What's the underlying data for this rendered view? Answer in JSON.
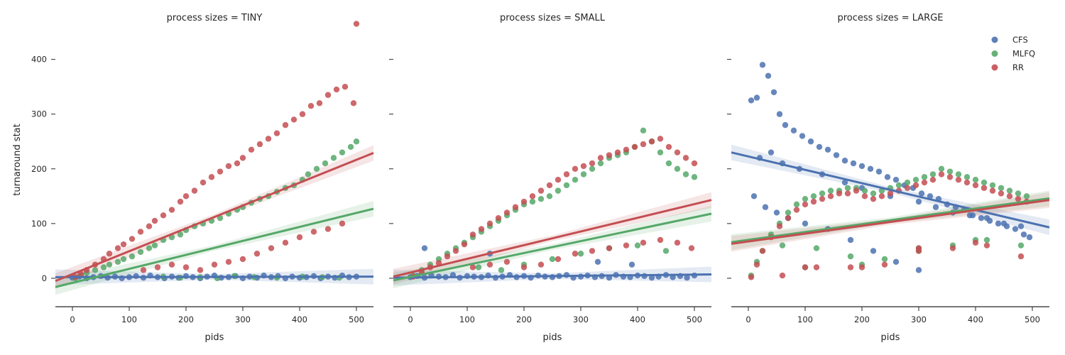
{
  "chart_data": {
    "type": "scatter",
    "y_axis_label": "turnaround stat",
    "x_axis_label": "pids",
    "x_ticks": [
      0,
      100,
      200,
      300,
      400,
      500
    ],
    "y_ticks": [
      0,
      100,
      200,
      300,
      400
    ],
    "xlim": [
      -30,
      530
    ],
    "ylim": [
      -52,
      480
    ],
    "grid": false,
    "legend_position": "top-right",
    "legend": [
      {
        "name": "CFS",
        "color": "#4c72b0"
      },
      {
        "name": "MLFQ",
        "color": "#55a868"
      },
      {
        "name": "RR",
        "color": "#c44e52"
      }
    ],
    "panels": [
      {
        "title": "process sizes = TINY",
        "fits": {
          "CFS": [
            [
              -30,
              2
            ],
            [
              530,
              3
            ]
          ],
          "MLFQ": [
            [
              -30,
              -16
            ],
            [
              530,
              127
            ]
          ],
          "RR": [
            [
              -30,
              -5
            ],
            [
              530,
              229
            ]
          ]
        },
        "series": [
          {
            "name": "CFS",
            "x": [
              0,
              12,
              25,
              37,
              50,
              62,
              75,
              87,
              100,
              112,
              125,
              137,
              150,
              162,
              175,
              187,
              200,
              212,
              225,
              237,
              250,
              262,
              275,
              287,
              300,
              312,
              325,
              337,
              350,
              362,
              375,
              387,
              400,
              412,
              425,
              437,
              450,
              462,
              475,
              487,
              500
            ],
            "y": [
              1,
              3,
              0,
              2,
              4,
              1,
              3,
              0,
              2,
              4,
              1,
              5,
              2,
              0,
              3,
              1,
              4,
              2,
              0,
              3,
              5,
              1,
              2,
              4,
              0,
              3,
              1,
              5,
              2,
              4,
              0,
              3,
              1,
              2,
              4,
              0,
              3,
              1,
              5,
              2,
              3
            ]
          },
          {
            "name": "MLFQ",
            "x": [
              5,
              15,
              25,
              40,
              55,
              65,
              80,
              90,
              105,
              120,
              135,
              145,
              160,
              175,
              190,
              200,
              215,
              230,
              245,
              260,
              275,
              290,
              300,
              315,
              330,
              345,
              360,
              375,
              390,
              405,
              415,
              430,
              445,
              460,
              475,
              490,
              500,
              160,
              190,
              225,
              255,
              285,
              320,
              360,
              405,
              440,
              470
            ],
            "y": [
              0,
              5,
              10,
              15,
              20,
              25,
              30,
              35,
              40,
              48,
              55,
              60,
              70,
              75,
              80,
              88,
              95,
              100,
              105,
              110,
              118,
              125,
              130,
              138,
              145,
              150,
              158,
              165,
              170,
              180,
              190,
              200,
              210,
              220,
              230,
              240,
              250,
              3,
              1,
              2,
              0,
              4,
              2,
              1,
              3,
              2,
              1
            ]
          },
          {
            "name": "RR",
            "x": [
              5,
              15,
              25,
              40,
              55,
              65,
              80,
              90,
              105,
              120,
              135,
              145,
              160,
              175,
              190,
              200,
              215,
              230,
              245,
              260,
              275,
              290,
              300,
              315,
              330,
              345,
              360,
              375,
              390,
              405,
              420,
              435,
              450,
              465,
              480,
              495,
              500,
              125,
              150,
              175,
              200,
              225,
              250,
              275,
              300,
              325,
              350,
              375,
              400,
              425,
              450,
              475
            ],
            "y": [
              2,
              8,
              15,
              25,
              35,
              45,
              55,
              62,
              72,
              85,
              95,
              105,
              115,
              125,
              140,
              150,
              160,
              175,
              185,
              195,
              205,
              210,
              220,
              235,
              245,
              255,
              265,
              280,
              290,
              300,
              315,
              320,
              335,
              345,
              350,
              320,
              465,
              15,
              20,
              25,
              20,
              15,
              25,
              30,
              35,
              45,
              55,
              65,
              75,
              85,
              90,
              100
            ]
          }
        ]
      },
      {
        "title": "process sizes = SMALL",
        "fits": {
          "CFS": [
            [
              -30,
              1
            ],
            [
              530,
              7
            ]
          ],
          "MLFQ": [
            [
              -30,
              -4
            ],
            [
              530,
              118
            ]
          ],
          "RR": [
            [
              -30,
              3
            ],
            [
              530,
              143
            ]
          ]
        },
        "series": [
          {
            "name": "CFS",
            "x": [
              0,
              12,
              25,
              37,
              50,
              62,
              75,
              87,
              100,
              112,
              125,
              137,
              150,
              162,
              175,
              187,
              200,
              212,
              225,
              237,
              250,
              262,
              275,
              287,
              300,
              312,
              325,
              337,
              350,
              362,
              375,
              387,
              400,
              412,
              425,
              437,
              450,
              462,
              475,
              487,
              500,
              25,
              140,
              330,
              390
            ],
            "y": [
              2,
              4,
              1,
              5,
              3,
              2,
              6,
              1,
              4,
              3,
              2,
              5,
              1,
              3,
              6,
              2,
              4,
              1,
              5,
              3,
              2,
              4,
              6,
              1,
              3,
              5,
              2,
              4,
              1,
              6,
              3,
              2,
              5,
              4,
              1,
              3,
              6,
              2,
              4,
              1,
              5,
              55,
              45,
              30,
              25
            ]
          },
          {
            "name": "MLFQ",
            "x": [
              5,
              20,
              35,
              50,
              65,
              80,
              95,
              110,
              125,
              140,
              155,
              170,
              185,
              200,
              215,
              230,
              245,
              260,
              275,
              290,
              305,
              320,
              335,
              350,
              365,
              380,
              395,
              410,
              425,
              440,
              455,
              470,
              485,
              500,
              120,
              160,
              200,
              250,
              300,
              350,
              400,
              450
            ],
            "y": [
              5,
              15,
              25,
              35,
              45,
              55,
              65,
              75,
              85,
              95,
              105,
              115,
              125,
              135,
              140,
              145,
              150,
              160,
              170,
              180,
              190,
              200,
              210,
              220,
              225,
              230,
              240,
              270,
              250,
              230,
              210,
              200,
              190,
              185,
              20,
              15,
              25,
              35,
              45,
              55,
              60,
              50
            ]
          },
          {
            "name": "RR",
            "x": [
              5,
              20,
              35,
              50,
              65,
              80,
              95,
              110,
              125,
              140,
              155,
              170,
              185,
              200,
              215,
              230,
              245,
              260,
              275,
              290,
              305,
              320,
              335,
              350,
              365,
              380,
              395,
              410,
              425,
              440,
              455,
              470,
              485,
              500,
              110,
              140,
              170,
              200,
              230,
              260,
              290,
              320,
              350,
              380,
              410,
              440,
              470,
              495
            ],
            "y": [
              3,
              10,
              20,
              28,
              40,
              50,
              62,
              80,
              90,
              100,
              110,
              120,
              130,
              140,
              150,
              160,
              170,
              180,
              190,
              200,
              205,
              210,
              220,
              225,
              230,
              235,
              240,
              245,
              250,
              255,
              240,
              230,
              220,
              210,
              20,
              25,
              30,
              20,
              25,
              35,
              45,
              50,
              55,
              60,
              65,
              70,
              65,
              55
            ]
          }
        ]
      },
      {
        "title": "process sizes = LARGE",
        "fits": {
          "CFS": [
            [
              -30,
              230
            ],
            [
              530,
              93
            ]
          ],
          "MLFQ": [
            [
              -30,
              66
            ],
            [
              530,
              146
            ]
          ],
          "RR": [
            [
              -30,
              63
            ],
            [
              530,
              143
            ]
          ]
        },
        "series": [
          {
            "name": "CFS",
            "x": [
              5,
              15,
              25,
              35,
              45,
              55,
              65,
              80,
              95,
              110,
              125,
              140,
              155,
              170,
              185,
              200,
              215,
              230,
              245,
              260,
              275,
              290,
              305,
              320,
              335,
              350,
              365,
              380,
              395,
              410,
              425,
              440,
              455,
              470,
              485,
              495,
              20,
              40,
              60,
              90,
              130,
              170,
              200,
              250,
              300,
              330,
              360,
              390,
              420,
              450,
              480,
              10,
              30,
              50,
              70,
              100,
              140,
              180,
              220,
              260,
              300
            ],
            "y": [
              325,
              330,
              390,
              370,
              340,
              300,
              280,
              270,
              260,
              250,
              240,
              235,
              225,
              215,
              210,
              205,
              200,
              195,
              185,
              180,
              170,
              165,
              155,
              150,
              145,
              135,
              130,
              125,
              115,
              110,
              105,
              100,
              95,
              90,
              80,
              75,
              220,
              230,
              210,
              200,
              190,
              175,
              165,
              150,
              140,
              130,
              120,
              115,
              110,
              100,
              95,
              150,
              130,
              120,
              110,
              100,
              90,
              70,
              50,
              30,
              15
            ]
          },
          {
            "name": "MLFQ",
            "x": [
              5,
              15,
              25,
              40,
              55,
              70,
              85,
              100,
              115,
              130,
              145,
              160,
              175,
              190,
              205,
              220,
              235,
              250,
              265,
              280,
              295,
              310,
              325,
              340,
              355,
              370,
              385,
              400,
              415,
              430,
              445,
              460,
              475,
              490,
              60,
              120,
              180,
              240,
              300,
              360,
              420,
              480,
              100,
              200,
              300,
              400
            ],
            "y": [
              5,
              30,
              50,
              80,
              100,
              120,
              135,
              145,
              150,
              155,
              160,
              160,
              165,
              165,
              160,
              155,
              160,
              165,
              170,
              175,
              180,
              185,
              190,
              200,
              195,
              190,
              185,
              180,
              175,
              170,
              165,
              160,
              155,
              150,
              60,
              55,
              40,
              35,
              50,
              60,
              70,
              60,
              20,
              25,
              55,
              70
            ]
          },
          {
            "name": "RR",
            "x": [
              5,
              15,
              25,
              40,
              55,
              70,
              85,
              100,
              115,
              130,
              145,
              160,
              175,
              190,
              205,
              220,
              235,
              250,
              265,
              280,
              295,
              310,
              325,
              340,
              355,
              370,
              385,
              400,
              415,
              430,
              445,
              460,
              475,
              490,
              60,
              120,
              180,
              240,
              300,
              360,
              420,
              480,
              100,
              200,
              300,
              400
            ],
            "y": [
              2,
              25,
              50,
              75,
              95,
              110,
              125,
              135,
              140,
              145,
              150,
              155,
              155,
              160,
              150,
              145,
              150,
              155,
              160,
              165,
              170,
              175,
              180,
              190,
              185,
              180,
              175,
              170,
              165,
              160,
              155,
              150,
              145,
              140,
              5,
              20,
              20,
              25,
              50,
              55,
              60,
              40,
              20,
              20,
              55,
              65
            ]
          }
        ]
      }
    ]
  }
}
